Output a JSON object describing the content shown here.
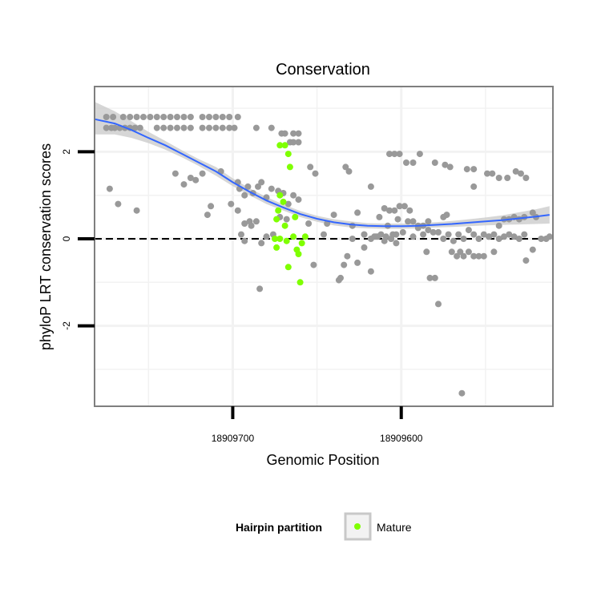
{
  "chart_data": {
    "type": "scatter",
    "title": "Conservation",
    "xlabel": "Genomic Position",
    "ylabel": "phyloP LRT conservation scores",
    "x_reversed": true,
    "xlim": [
      18909782,
      18909510
    ],
    "ylim": [
      -3.85,
      3.5
    ],
    "x_ticks": [
      {
        "value": 18909700,
        "label": "18909700"
      },
      {
        "value": 18909600,
        "label": "18909600"
      }
    ],
    "y_ticks": [
      {
        "value": 2,
        "label": "2"
      },
      {
        "value": 0,
        "label": "0"
      },
      {
        "value": -2,
        "label": "-2"
      }
    ],
    "grid": true,
    "reference_line": {
      "y": 0,
      "style": "dashed"
    },
    "legend": {
      "position": "bottom",
      "title": "Hairpin partition",
      "entries": [
        {
          "label": "Mature",
          "color": "#7fff00"
        }
      ]
    },
    "colors": {
      "other_points": "#999999",
      "mature_points": "#7fff00",
      "smooth_line": "#3366ff",
      "ribbon": "#c8c8c8",
      "panel_border": "#7f7f7f",
      "grid": "#f2f2f2"
    },
    "series": [
      {
        "name": "",
        "color": "#999999",
        "points": [
          [
            18909775,
            2.55
          ],
          [
            18909772,
            2.55
          ],
          [
            18909770,
            2.55
          ],
          [
            18909767,
            2.55
          ],
          [
            18909764,
            2.55
          ],
          [
            18909761,
            2.55
          ],
          [
            18909758,
            2.55
          ],
          [
            18909755,
            2.55
          ],
          [
            18909775,
            2.8
          ],
          [
            18909771,
            2.8
          ],
          [
            18909765,
            2.8
          ],
          [
            18909761,
            2.8
          ],
          [
            18909757,
            2.8
          ],
          [
            18909753,
            2.8
          ],
          [
            18909749,
            2.8
          ],
          [
            18909745,
            2.8
          ],
          [
            18909741,
            2.8
          ],
          [
            18909737,
            2.8
          ],
          [
            18909733,
            2.8
          ],
          [
            18909729,
            2.8
          ],
          [
            18909725,
            2.8
          ],
          [
            18909718,
            2.8
          ],
          [
            18909714,
            2.8
          ],
          [
            18909710,
            2.8
          ],
          [
            18909706,
            2.8
          ],
          [
            18909702,
            2.8
          ],
          [
            18909697,
            2.8
          ],
          [
            18909745,
            2.55
          ],
          [
            18909741,
            2.55
          ],
          [
            18909737,
            2.55
          ],
          [
            18909733,
            2.55
          ],
          [
            18909729,
            2.55
          ],
          [
            18909725,
            2.55
          ],
          [
            18909718,
            2.55
          ],
          [
            18909714,
            2.55
          ],
          [
            18909710,
            2.55
          ],
          [
            18909706,
            2.55
          ],
          [
            18909702,
            2.55
          ],
          [
            18909699,
            2.55
          ],
          [
            18909686,
            2.55
          ],
          [
            18909677,
            2.55
          ],
          [
            18909671,
            2.42
          ],
          [
            18909669,
            2.42
          ],
          [
            18909666,
            2.22
          ],
          [
            18909664,
            2.22
          ],
          [
            18909661,
            2.22
          ],
          [
            18909664,
            2.42
          ],
          [
            18909661,
            2.42
          ],
          [
            18909773,
            1.15
          ],
          [
            18909768,
            0.8
          ],
          [
            18909757,
            0.65
          ],
          [
            18909734,
            1.5
          ],
          [
            18909729,
            1.25
          ],
          [
            18909725,
            1.4
          ],
          [
            18909722,
            1.35
          ],
          [
            18909718,
            1.5
          ],
          [
            18909715,
            0.55
          ],
          [
            18909713,
            0.75
          ],
          [
            18909707,
            1.55
          ],
          [
            18909701,
            0.8
          ],
          [
            18909697,
            1.3
          ],
          [
            18909696,
            1.15
          ],
          [
            18909693,
            1.0
          ],
          [
            18909691,
            1.2
          ],
          [
            18909688,
            1.05
          ],
          [
            18909685,
            1.2
          ],
          [
            18909683,
            1.3
          ],
          [
            18909680,
            0.95
          ],
          [
            18909677,
            1.15
          ],
          [
            18909673,
            1.1
          ],
          [
            18909670,
            1.05
          ],
          [
            18909667,
            0.8
          ],
          [
            18909664,
            1.0
          ],
          [
            18909661,
            0.9
          ],
          [
            18909697,
            0.65
          ],
          [
            18909693,
            0.35
          ],
          [
            18909690,
            0.4
          ],
          [
            18909686,
            0.4
          ],
          [
            18909683,
            -0.1
          ],
          [
            18909680,
            0.05
          ],
          [
            18909676,
            0.1
          ],
          [
            18909672,
            0.5
          ],
          [
            18909668,
            0.45
          ],
          [
            18909655,
            0.35
          ],
          [
            18909652,
            -0.6
          ],
          [
            18909684,
            -1.15
          ],
          [
            18909695,
            0.1
          ],
          [
            18909693,
            -0.05
          ],
          [
            18909689,
            0.3
          ],
          [
            18909633,
            1.65
          ],
          [
            18909631,
            1.55
          ],
          [
            18909629,
            0.3
          ],
          [
            18909626,
            0.6
          ],
          [
            18909622,
            0.1
          ],
          [
            18909618,
            1.2
          ],
          [
            18909616,
            0.05
          ],
          [
            18909613,
            0.5
          ],
          [
            18909610,
            0.7
          ],
          [
            18909608,
            0.3
          ],
          [
            18909605,
            0.1
          ],
          [
            18909602,
            0.45
          ],
          [
            18909599,
            0.15
          ],
          [
            18909596,
            0.4
          ],
          [
            18909593,
            0.05
          ],
          [
            18909590,
            0.3
          ],
          [
            18909636,
            -0.9
          ],
          [
            18909632,
            -0.4
          ],
          [
            18909629,
            0.0
          ],
          [
            18909626,
            -0.55
          ],
          [
            18909622,
            -0.2
          ],
          [
            18909618,
            -0.75
          ],
          [
            18909614,
            0.05
          ],
          [
            18909610,
            -0.05
          ],
          [
            18909606,
            0.0
          ],
          [
            18909603,
            -0.1
          ],
          [
            18909622,
            0.1
          ],
          [
            18909618,
            0.0
          ],
          [
            18909615,
            0.05
          ],
          [
            18909612,
            0.1
          ],
          [
            18909609,
            0.05
          ],
          [
            18909606,
            0.0
          ],
          [
            18909603,
            0.1
          ],
          [
            18909607,
            0.65
          ],
          [
            18909604,
            0.65
          ],
          [
            18909601,
            0.75
          ],
          [
            18909598,
            0.75
          ],
          [
            18909595,
            0.65
          ],
          [
            18909593,
            0.4
          ],
          [
            18909590,
            0.25
          ],
          [
            18909587,
            0.3
          ],
          [
            18909584,
            0.4
          ],
          [
            18909607,
            1.95
          ],
          [
            18909604,
            1.95
          ],
          [
            18909601,
            1.95
          ],
          [
            18909597,
            1.75
          ],
          [
            18909593,
            1.75
          ],
          [
            18909589,
            1.95
          ],
          [
            18909580,
            1.75
          ],
          [
            18909574,
            1.7
          ],
          [
            18909571,
            1.65
          ],
          [
            18909561,
            1.6
          ],
          [
            18909557,
            1.6
          ],
          [
            18909549,
            1.5
          ],
          [
            18909546,
            1.5
          ],
          [
            18909542,
            1.4
          ],
          [
            18909537,
            1.4
          ],
          [
            18909532,
            1.55
          ],
          [
            18909529,
            1.5
          ],
          [
            18909526,
            1.4
          ],
          [
            18909585,
            -0.3
          ],
          [
            18909583,
            -0.9
          ],
          [
            18909580,
            -0.9
          ],
          [
            18909578,
            -1.5
          ],
          [
            18909575,
            0.5
          ],
          [
            18909573,
            0.55
          ],
          [
            18909570,
            -0.3
          ],
          [
            18909567,
            -0.4
          ],
          [
            18909565,
            -0.3
          ],
          [
            18909563,
            -0.4
          ],
          [
            18909560,
            -0.3
          ],
          [
            18909557,
            -0.4
          ],
          [
            18909554,
            -0.4
          ],
          [
            18909551,
            -0.4
          ],
          [
            18909548,
            0.05
          ],
          [
            18909545,
            -0.3
          ],
          [
            18909542,
            0.3
          ],
          [
            18909539,
            0.45
          ],
          [
            18909536,
            0.45
          ],
          [
            18909533,
            0.5
          ],
          [
            18909530,
            0.45
          ],
          [
            18909527,
            0.5
          ],
          [
            18909522,
            0.6
          ],
          [
            18909520,
            0.5
          ],
          [
            18909517,
            0.0
          ],
          [
            18909514,
            0.0
          ],
          [
            18909512,
            0.05
          ],
          [
            18909587,
            0.1
          ],
          [
            18909584,
            0.2
          ],
          [
            18909581,
            0.15
          ],
          [
            18909578,
            0.15
          ],
          [
            18909575,
            0.0
          ],
          [
            18909572,
            0.1
          ],
          [
            18909569,
            -0.05
          ],
          [
            18909566,
            0.1
          ],
          [
            18909563,
            0.0
          ],
          [
            18909560,
            0.2
          ],
          [
            18909557,
            0.1
          ],
          [
            18909554,
            0.0
          ],
          [
            18909551,
            0.1
          ],
          [
            18909548,
            0.05
          ],
          [
            18909545,
            0.1
          ],
          [
            18909542,
            0.0
          ],
          [
            18909526,
            -0.5
          ],
          [
            18909522,
            -0.25
          ],
          [
            18909557,
            1.2
          ],
          [
            18909539,
            0.05
          ],
          [
            18909536,
            0.1
          ],
          [
            18909533,
            0.05
          ],
          [
            18909530,
            0.0
          ],
          [
            18909527,
            0.1
          ],
          [
            18909564,
            -3.55
          ],
          [
            18909637,
            -0.95
          ],
          [
            18909634,
            -0.6
          ],
          [
            18909654,
            1.65
          ],
          [
            18909651,
            1.5
          ],
          [
            18909640,
            0.55
          ],
          [
            18909644,
            0.35
          ],
          [
            18909646,
            0.1
          ]
        ]
      },
      {
        "name": "Mature",
        "color": "#7fff00",
        "points": [
          [
            18909672,
            2.15
          ],
          [
            18909669,
            2.15
          ],
          [
            18909667,
            1.95
          ],
          [
            18909666,
            1.65
          ],
          [
            18909672,
            1.0
          ],
          [
            18909670,
            0.85
          ],
          [
            18909673,
            0.65
          ],
          [
            18909674,
            0.45
          ],
          [
            18909669,
            0.3
          ],
          [
            18909675,
            0.0
          ],
          [
            18909672,
            0.0
          ],
          [
            18909668,
            -0.05
          ],
          [
            18909664,
            0.05
          ],
          [
            18909662,
            -0.25
          ],
          [
            18909661,
            -0.35
          ],
          [
            18909659,
            -0.1
          ],
          [
            18909657,
            0.05
          ],
          [
            18909667,
            -0.65
          ],
          [
            18909660,
            -1.0
          ],
          [
            18909674,
            -0.2
          ],
          [
            18909663,
            0.5
          ]
        ]
      }
    ],
    "smooth": {
      "x": [
        18909782,
        18909770,
        18909760,
        18909750,
        18909740,
        18909730,
        18909720,
        18909710,
        18909700,
        18909690,
        18909680,
        18909670,
        18909660,
        18909650,
        18909640,
        18909630,
        18909620,
        18909610,
        18909600,
        18909590,
        18909580,
        18909570,
        18909560,
        18909550,
        18909540,
        18909530,
        18909520,
        18909512
      ],
      "y": [
        2.75,
        2.65,
        2.5,
        2.32,
        2.15,
        1.95,
        1.75,
        1.55,
        1.3,
        1.08,
        0.88,
        0.72,
        0.57,
        0.46,
        0.38,
        0.33,
        0.3,
        0.29,
        0.29,
        0.3,
        0.32,
        0.34,
        0.37,
        0.4,
        0.43,
        0.47,
        0.51,
        0.55
      ],
      "lower": [
        2.4,
        2.4,
        2.32,
        2.2,
        2.05,
        1.87,
        1.67,
        1.45,
        1.21,
        1.0,
        0.8,
        0.65,
        0.5,
        0.39,
        0.31,
        0.26,
        0.24,
        0.23,
        0.23,
        0.24,
        0.26,
        0.27,
        0.29,
        0.31,
        0.32,
        0.33,
        0.34,
        0.35
      ],
      "upper": [
        3.15,
        2.93,
        2.7,
        2.46,
        2.25,
        2.03,
        1.83,
        1.65,
        1.39,
        1.16,
        0.96,
        0.79,
        0.64,
        0.53,
        0.45,
        0.4,
        0.36,
        0.35,
        0.35,
        0.36,
        0.38,
        0.41,
        0.45,
        0.49,
        0.54,
        0.61,
        0.68,
        0.75
      ]
    }
  }
}
